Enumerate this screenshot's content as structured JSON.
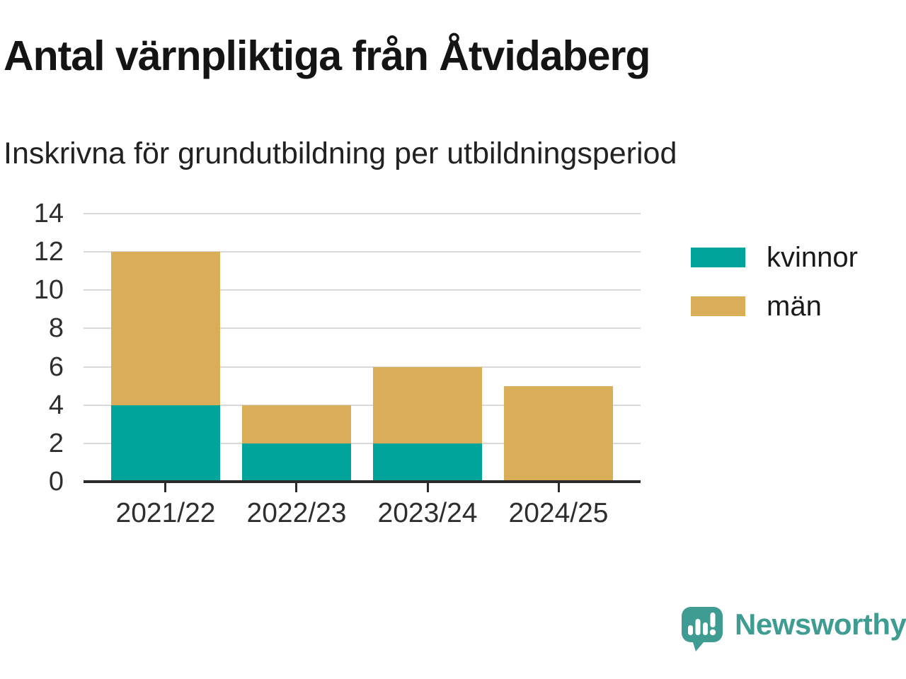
{
  "chart_data": {
    "type": "bar",
    "stacked": true,
    "title": "Antal värnpliktiga från Åtvidaberg",
    "subtitle": "Inskrivna för grundutbildning per utbildningsperiod",
    "categories": [
      "2021/22",
      "2022/23",
      "2023/24",
      "2024/25"
    ],
    "series": [
      {
        "name": "kvinnor",
        "color": "#00a49a",
        "values": [
          4,
          2,
          2,
          0
        ]
      },
      {
        "name": "män",
        "color": "#daad58",
        "values": [
          8,
          2,
          4,
          5
        ]
      }
    ],
    "totals": [
      12,
      4,
      6,
      5
    ],
    "xlabel": "",
    "ylabel": "",
    "ylim": [
      0,
      14
    ],
    "yticks": [
      0,
      2,
      4,
      6,
      8,
      10,
      12,
      14
    ],
    "grid": "horizontal",
    "legend_position": "right"
  },
  "branding": {
    "logo_text": "Newsworthy",
    "logo_icon": "newsworthy-bar-chart-speech-bubble",
    "logo_color": "#3f9c93"
  }
}
